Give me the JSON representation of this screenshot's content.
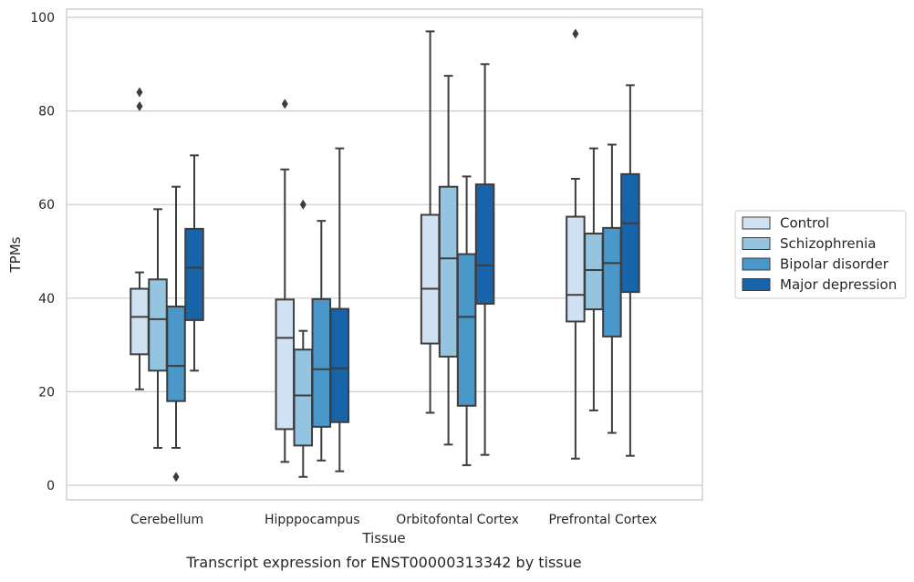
{
  "chart_data": {
    "type": "box",
    "caption": "Transcript expression for ENST00000313342 by tissue",
    "xlabel": "Tissue",
    "ylabel": "TPMs",
    "ylim": [
      -3,
      100
    ],
    "yticks": [
      0,
      20,
      40,
      60,
      80,
      100
    ],
    "grid": true,
    "legend_position": "right",
    "categories": [
      "Cerebellum",
      "Hipppocampus",
      "Orbitofontal Cortex",
      "Prefrontal Cortex"
    ],
    "series": [
      {
        "name": "Control",
        "color": "#d0e1f2",
        "boxes": [
          {
            "whisker_low": 20.5,
            "q1": 28,
            "median": 36,
            "q3": 42,
            "whisker_high": 45.5,
            "outliers": [
              84,
              81
            ]
          },
          {
            "whisker_low": 5,
            "q1": 12,
            "median": 31.5,
            "q3": 39.7,
            "whisker_high": 67.5,
            "outliers": [
              81.5
            ]
          },
          {
            "whisker_low": 15.5,
            "q1": 30.3,
            "median": 42,
            "q3": 57.8,
            "whisker_high": 97,
            "outliers": []
          },
          {
            "whisker_low": 5.7,
            "q1": 35,
            "median": 40.7,
            "q3": 57.4,
            "whisker_high": 65.5,
            "outliers": [
              96.5
            ]
          }
        ]
      },
      {
        "name": "Schizophrenia",
        "color": "#94c4df",
        "boxes": [
          {
            "whisker_low": 8,
            "q1": 24.5,
            "median": 35.5,
            "q3": 44,
            "whisker_high": 59,
            "outliers": []
          },
          {
            "whisker_low": 1.8,
            "q1": 8.5,
            "median": 19.2,
            "q3": 29,
            "whisker_high": 33,
            "outliers": [
              60
            ]
          },
          {
            "whisker_low": 8.7,
            "q1": 27.5,
            "median": 48.5,
            "q3": 63.8,
            "whisker_high": 87.5,
            "outliers": []
          },
          {
            "whisker_low": 16,
            "q1": 37.6,
            "median": 46,
            "q3": 53.8,
            "whisker_high": 72,
            "outliers": []
          }
        ]
      },
      {
        "name": "Bipolar disorder",
        "color": "#4a98c9",
        "boxes": [
          {
            "whisker_low": 8,
            "q1": 18,
            "median": 25.5,
            "q3": 38.2,
            "whisker_high": 63.8,
            "outliers": [
              1.8
            ]
          },
          {
            "whisker_low": 5.3,
            "q1": 12.5,
            "median": 24.8,
            "q3": 39.8,
            "whisker_high": 56.5,
            "outliers": []
          },
          {
            "whisker_low": 4.3,
            "q1": 17,
            "median": 36,
            "q3": 49.4,
            "whisker_high": 66,
            "outliers": []
          },
          {
            "whisker_low": 11.2,
            "q1": 31.8,
            "median": 47.5,
            "q3": 55,
            "whisker_high": 72.8,
            "outliers": []
          }
        ]
      },
      {
        "name": "Major depression",
        "color": "#1764ab",
        "boxes": [
          {
            "whisker_low": 24.5,
            "q1": 35.3,
            "median": 46.5,
            "q3": 54.8,
            "whisker_high": 70.5,
            "outliers": []
          },
          {
            "whisker_low": 3,
            "q1": 13.5,
            "median": 25,
            "q3": 37.7,
            "whisker_high": 72,
            "outliers": []
          },
          {
            "whisker_low": 6.5,
            "q1": 38.8,
            "median": 47,
            "q3": 64.3,
            "whisker_high": 90,
            "outliers": []
          },
          {
            "whisker_low": 6.3,
            "q1": 41.3,
            "median": 56,
            "q3": 66.5,
            "whisker_high": 85.5,
            "outliers": []
          }
        ]
      }
    ]
  }
}
